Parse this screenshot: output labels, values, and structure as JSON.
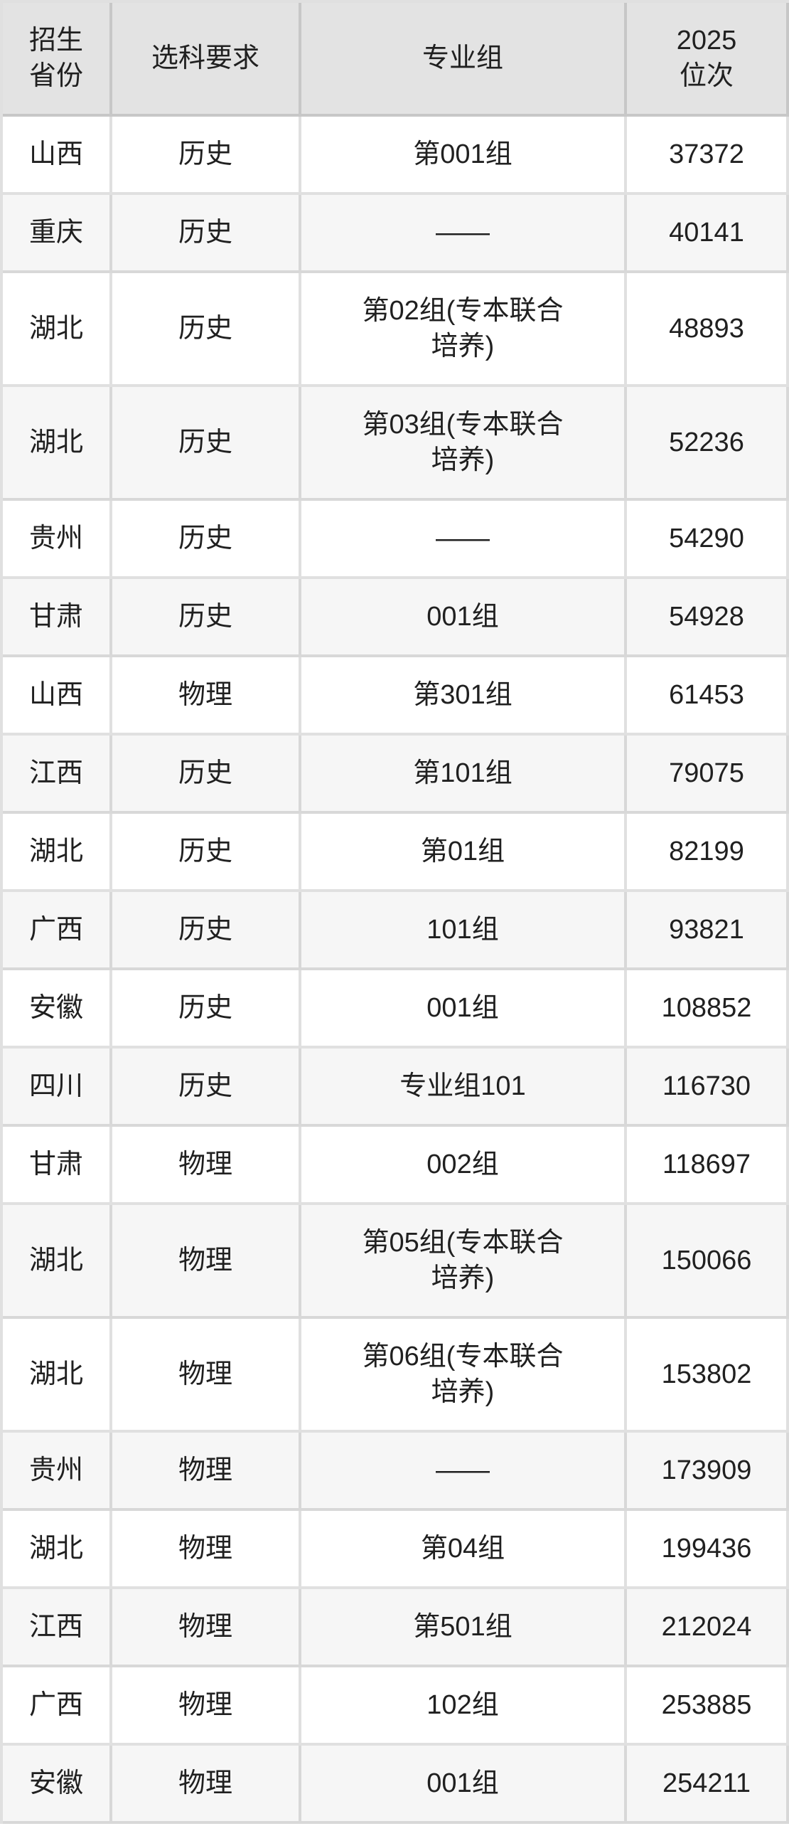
{
  "colors": {
    "header_bg": "#e3e3e3",
    "row_bg": "#ffffff",
    "row_alt_bg": "#f6f6f6",
    "border": "rgba(0,0,0,0.12)",
    "text": "#202020"
  },
  "table": {
    "columns": [
      {
        "id": "province",
        "label": "招生\n省份"
      },
      {
        "id": "subject",
        "label": "选科要求"
      },
      {
        "id": "group",
        "label": "专业组"
      },
      {
        "id": "rank",
        "label": "2025\n位次"
      }
    ],
    "rows": [
      {
        "province": "山西",
        "subject": "历史",
        "group": "第001组",
        "rank": "37372"
      },
      {
        "province": "重庆",
        "subject": "历史",
        "group": "——",
        "rank": "40141"
      },
      {
        "province": "湖北",
        "subject": "历史",
        "group": "第02组(专本联合\n培养)",
        "rank": "48893"
      },
      {
        "province": "湖北",
        "subject": "历史",
        "group": "第03组(专本联合\n培养)",
        "rank": "52236"
      },
      {
        "province": "贵州",
        "subject": "历史",
        "group": "——",
        "rank": "54290"
      },
      {
        "province": "甘肃",
        "subject": "历史",
        "group": "001组",
        "rank": "54928"
      },
      {
        "province": "山西",
        "subject": "物理",
        "group": "第301组",
        "rank": "61453"
      },
      {
        "province": "江西",
        "subject": "历史",
        "group": "第101组",
        "rank": "79075"
      },
      {
        "province": "湖北",
        "subject": "历史",
        "group": "第01组",
        "rank": "82199"
      },
      {
        "province": "广西",
        "subject": "历史",
        "group": "101组",
        "rank": "93821"
      },
      {
        "province": "安徽",
        "subject": "历史",
        "group": "001组",
        "rank": "108852"
      },
      {
        "province": "四川",
        "subject": "历史",
        "group": "专业组101",
        "rank": "116730"
      },
      {
        "province": "甘肃",
        "subject": "物理",
        "group": "002组",
        "rank": "118697"
      },
      {
        "province": "湖北",
        "subject": "物理",
        "group": "第05组(专本联合\n培养)",
        "rank": "150066"
      },
      {
        "province": "湖北",
        "subject": "物理",
        "group": "第06组(专本联合\n培养)",
        "rank": "153802"
      },
      {
        "province": "贵州",
        "subject": "物理",
        "group": "——",
        "rank": "173909"
      },
      {
        "province": "湖北",
        "subject": "物理",
        "group": "第04组",
        "rank": "199436"
      },
      {
        "province": "江西",
        "subject": "物理",
        "group": "第501组",
        "rank": "212024"
      },
      {
        "province": "广西",
        "subject": "物理",
        "group": "102组",
        "rank": "253885"
      },
      {
        "province": "安徽",
        "subject": "物理",
        "group": "001组",
        "rank": "254211"
      }
    ]
  }
}
